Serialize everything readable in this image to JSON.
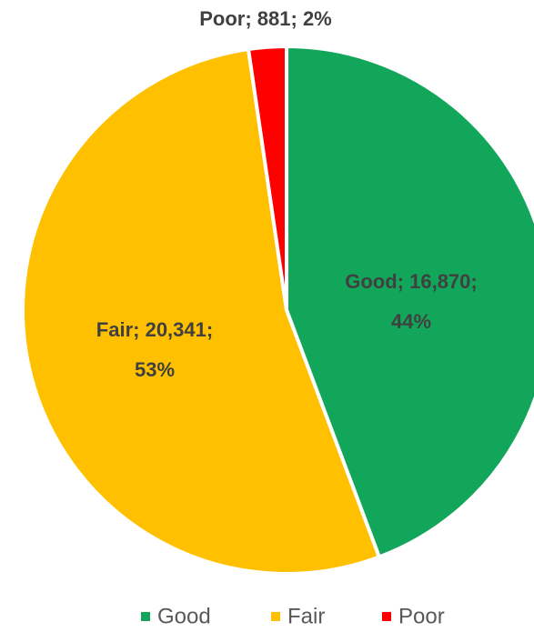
{
  "chart_data": {
    "type": "pie",
    "categories": [
      "Good",
      "Fair",
      "Poor"
    ],
    "values": [
      16870,
      20341,
      881
    ],
    "value_labels": [
      [
        "Good; 16,870;",
        "44%"
      ],
      [
        "Fair; 20,341;",
        "53%"
      ],
      [
        "Poor; 881; 2%"
      ]
    ],
    "colors": [
      "#12a65a",
      "#ffc000",
      "#ff0000"
    ],
    "legend": "bottom"
  }
}
